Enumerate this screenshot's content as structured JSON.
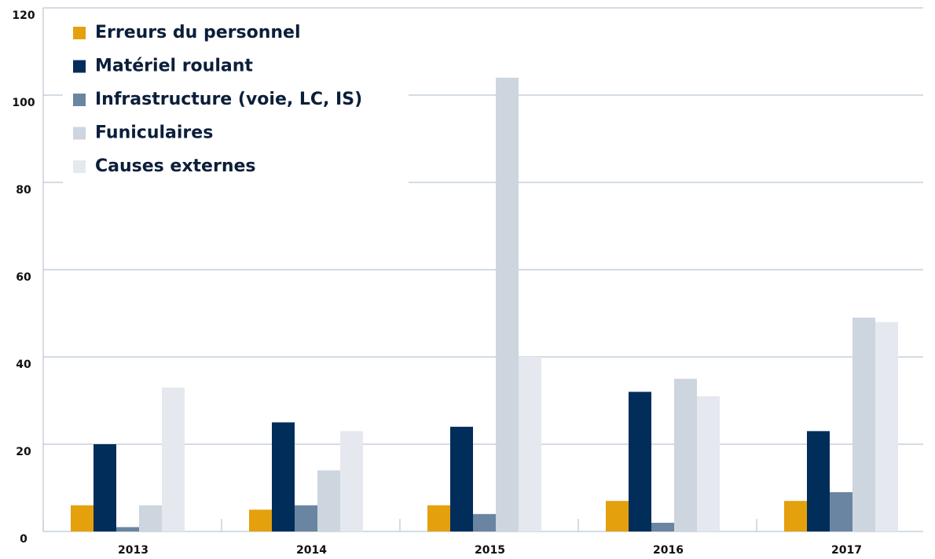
{
  "chart_data": {
    "type": "bar",
    "categories": [
      "2013",
      "2014",
      "2015",
      "2016",
      "2017"
    ],
    "series": [
      {
        "name": "Erreurs du personnel",
        "color": "#e5a00d",
        "values": [
          6,
          5,
          6,
          7,
          7
        ]
      },
      {
        "name": "Matériel roulant",
        "color": "#002d5a",
        "values": [
          20,
          25,
          24,
          32,
          23
        ]
      },
      {
        "name": "Infrastructure (voie, LC, IS)",
        "color": "#6a85a1",
        "values": [
          1,
          6,
          4,
          2,
          9
        ]
      },
      {
        "name": "Funiculaires",
        "color": "#cdd5df",
        "values": [
          6,
          14,
          104,
          35,
          49
        ]
      },
      {
        "name": "Causes externes",
        "color": "#e5e8ee",
        "values": [
          33,
          23,
          40,
          31,
          48
        ]
      }
    ],
    "ylim": [
      0,
      120
    ],
    "yticks": [
      0,
      20,
      40,
      60,
      80,
      100,
      120
    ],
    "grid": true,
    "legend": "top-left"
  }
}
